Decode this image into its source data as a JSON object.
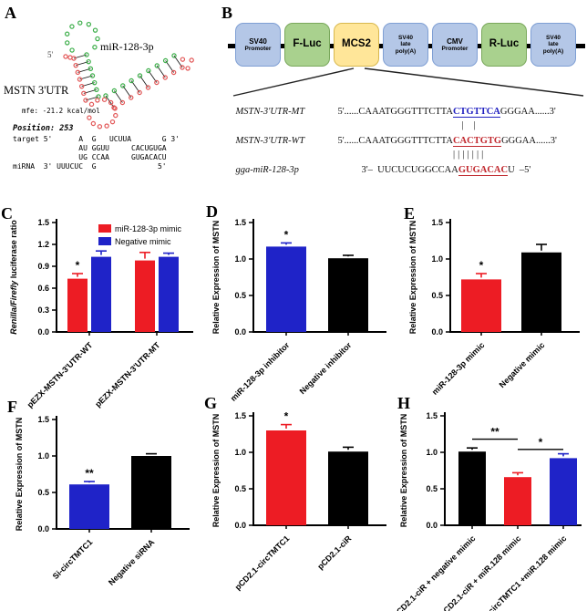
{
  "colors": {
    "bar_red": "#ed1c24",
    "bar_blue": "#1f23c8",
    "bar_black": "#000000",
    "strand_green": "#3cae49",
    "strand_red": "#e25757",
    "motif_blue": "#2020c0",
    "motif_red": "#c0262c",
    "box_blue": "#b4c7e7",
    "box_green": "#a9d18e",
    "box_yellow": "#ffe699"
  },
  "panels": {
    "A": {
      "label": "A",
      "mirna_label": "miR-128-3p",
      "five_prime": "5'",
      "utr_label": "MSTN 3'UTR",
      "mfe": "mfe: -21.2 kcal/mol",
      "position": "Position: 253",
      "alignment": [
        "target 5'      A  G   UCUUA       G 3'",
        "               AU GGUU     CACUGUGA",
        "               UG CCAA     GUGACACU",
        "miRNA  3' UUUCUC  G              5'"
      ]
    },
    "B": {
      "label": "B",
      "construct": [
        {
          "line1": "SV40",
          "line2": "Promoter"
        },
        {
          "line1": "F-Luc"
        },
        {
          "line1": "MCS2"
        },
        {
          "line1": "SV40",
          "line2": "late",
          "line3": "poly(A)"
        },
        {
          "line1": "CMV",
          "line2": "Promoter"
        },
        {
          "line1": "R-Luc"
        },
        {
          "line1": "SV40",
          "line2": "late",
          "line3": "poly(A)"
        }
      ],
      "sequences": [
        {
          "name": "MSTN-3'UTR-MT",
          "prefix": "5'......CAAATGGGTTTCTTA",
          "motif": "CTGTTCA",
          "suffix": "GGGAA......3'"
        },
        {
          "name": "MSTN-3'UTR-WT",
          "prefix": "5'......CAAATGGGTTTCTTA",
          "motif": "CACTGTG",
          "suffix": "GGGAA......3'"
        },
        {
          "name": "gga-miR-128-3p",
          "prefix": "3'–  UUCUCUGGCCAA",
          "motif": "GUGACAC",
          "suffix": "U  –5'"
        }
      ],
      "pairing": [
        "  |  |",
        "|||||||"
      ]
    },
    "C": {
      "label": "C"
    },
    "D": {
      "label": "D"
    },
    "E": {
      "label": "E"
    },
    "F": {
      "label": "F"
    },
    "G": {
      "label": "G"
    },
    "H": {
      "label": "H"
    }
  },
  "chart_data": [
    {
      "id": "C",
      "type": "bar",
      "ylabel_parts": [
        {
          "text": "Renilla/Firefly",
          "italic": true
        },
        {
          "text": " luciferase ratio",
          "italic": false
        }
      ],
      "ylim": [
        0,
        1.5
      ],
      "yticks": [
        0,
        0.3,
        0.6,
        0.9,
        1.2,
        1.5
      ],
      "categories": [
        "pEZX-MSTN-3'UTR-WT",
        "pEZX-MSTN-3'UTR-MT"
      ],
      "series": [
        {
          "name": "miR-128-3p mimic",
          "color": "#ed1c24",
          "values": [
            0.73,
            0.98
          ],
          "errors": [
            0.07,
            0.11
          ],
          "sig": [
            "*",
            null
          ]
        },
        {
          "name": "Negative mimic",
          "color": "#1f23c8",
          "values": [
            1.03,
            1.03
          ],
          "errors": [
            0.08,
            0.05
          ],
          "sig": [
            null,
            null
          ]
        }
      ],
      "legend_position": "top-right",
      "grid": false
    },
    {
      "id": "D",
      "type": "bar",
      "ylabel_parts": [
        {
          "text": "Relative Expression of  MSTN",
          "italic": false
        }
      ],
      "ylim": [
        0,
        1.5
      ],
      "yticks": [
        0,
        0.5,
        1.0,
        1.5
      ],
      "categories": [
        "miR-128-3p inhibitor",
        "Negative inhibitor"
      ],
      "values": [
        1.17,
        1.01
      ],
      "errors": [
        0.05,
        0.04
      ],
      "colors": [
        "#1f23c8",
        "#000000"
      ],
      "sig": [
        "*",
        null
      ],
      "grid": false
    },
    {
      "id": "E",
      "type": "bar",
      "ylabel_parts": [
        {
          "text": "Relative Expression of  MSTN",
          "italic": false
        }
      ],
      "ylim": [
        0,
        1.5
      ],
      "yticks": [
        0,
        0.5,
        1.0,
        1.5
      ],
      "categories": [
        "miR-128-3p mimic",
        "Negative mimic"
      ],
      "values": [
        0.72,
        1.09
      ],
      "errors": [
        0.08,
        0.11
      ],
      "colors": [
        "#ed1c24",
        "#000000"
      ],
      "sig": [
        "*",
        null
      ],
      "grid": false
    },
    {
      "id": "F",
      "type": "bar",
      "ylabel_parts": [
        {
          "text": "Relative Expression of  MSTN",
          "italic": false
        }
      ],
      "ylim": [
        0,
        1.5
      ],
      "yticks": [
        0,
        0.5,
        1.0,
        1.5
      ],
      "categories": [
        "Si-circTMTC1",
        "Negative siRNA"
      ],
      "values": [
        0.61,
        1.0
      ],
      "errors": [
        0.04,
        0.03
      ],
      "colors": [
        "#1f23c8",
        "#000000"
      ],
      "sig": [
        "**",
        null
      ],
      "grid": false
    },
    {
      "id": "G",
      "type": "bar",
      "ylabel_parts": [
        {
          "text": "Relative Expression of MSTN",
          "italic": false
        }
      ],
      "ylim": [
        0,
        1.5
      ],
      "yticks": [
        0,
        0.5,
        1.0,
        1.5
      ],
      "categories": [
        "pCD2.1-circTMTC1",
        "pCD2.1-ciR"
      ],
      "values": [
        1.3,
        1.01
      ],
      "errors": [
        0.08,
        0.06
      ],
      "colors": [
        "#ed1c24",
        "#000000"
      ],
      "sig": [
        "*",
        null
      ],
      "grid": false
    },
    {
      "id": "H",
      "type": "bar",
      "ylabel_parts": [
        {
          "text": "Relative Expression of  MSTN",
          "italic": false
        }
      ],
      "ylim": [
        0,
        1.5
      ],
      "yticks": [
        0,
        0.5,
        1.0,
        1.5
      ],
      "categories": [
        "pCD2.1-ciR + negative mimic",
        "pCD2.1-ciR + miR.128 mimic",
        "pCD2.1-circTMTC1 +miR.128 mimic"
      ],
      "values": [
        1.01,
        0.66,
        0.92
      ],
      "errors": [
        0.05,
        0.06,
        0.06
      ],
      "colors": [
        "#000000",
        "#ed1c24",
        "#1f23c8"
      ],
      "sig": [
        null,
        null,
        null
      ],
      "brackets": [
        {
          "from": 0,
          "to": 1,
          "label": "**",
          "y": 1.18
        },
        {
          "from": 1,
          "to": 2,
          "label": "*",
          "y": 1.04
        }
      ],
      "grid": false
    }
  ]
}
